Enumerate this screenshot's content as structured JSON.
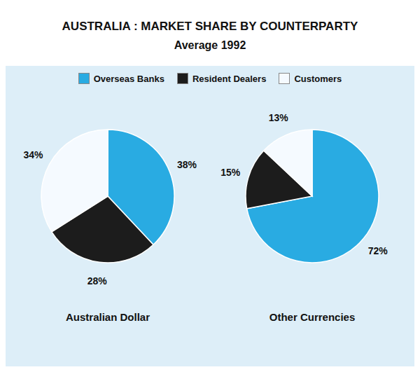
{
  "title": "AUSTRALIA : MARKET SHARE BY COUNTERPARTY",
  "subtitle": "Average 1992",
  "chart_data": [
    {
      "type": "pie",
      "title": "Australian Dollar",
      "categories": [
        "Overseas Banks",
        "Resident Dealers",
        "Customers"
      ],
      "values": [
        38,
        28,
        34
      ],
      "value_labels": [
        "38%",
        "28%",
        "34%"
      ],
      "colors": [
        "#29abe2",
        "#1c1c1c",
        "#f5faff"
      ],
      "data_labels": true,
      "legend": "top"
    },
    {
      "type": "pie",
      "title": "Other Currencies",
      "categories": [
        "Overseas Banks",
        "Resident Dealers",
        "Customers"
      ],
      "values": [
        72,
        15,
        13
      ],
      "value_labels": [
        "72%",
        "15%",
        "13%"
      ],
      "colors": [
        "#29abe2",
        "#1c1c1c",
        "#f5faff"
      ],
      "data_labels": true,
      "legend": "top"
    }
  ]
}
